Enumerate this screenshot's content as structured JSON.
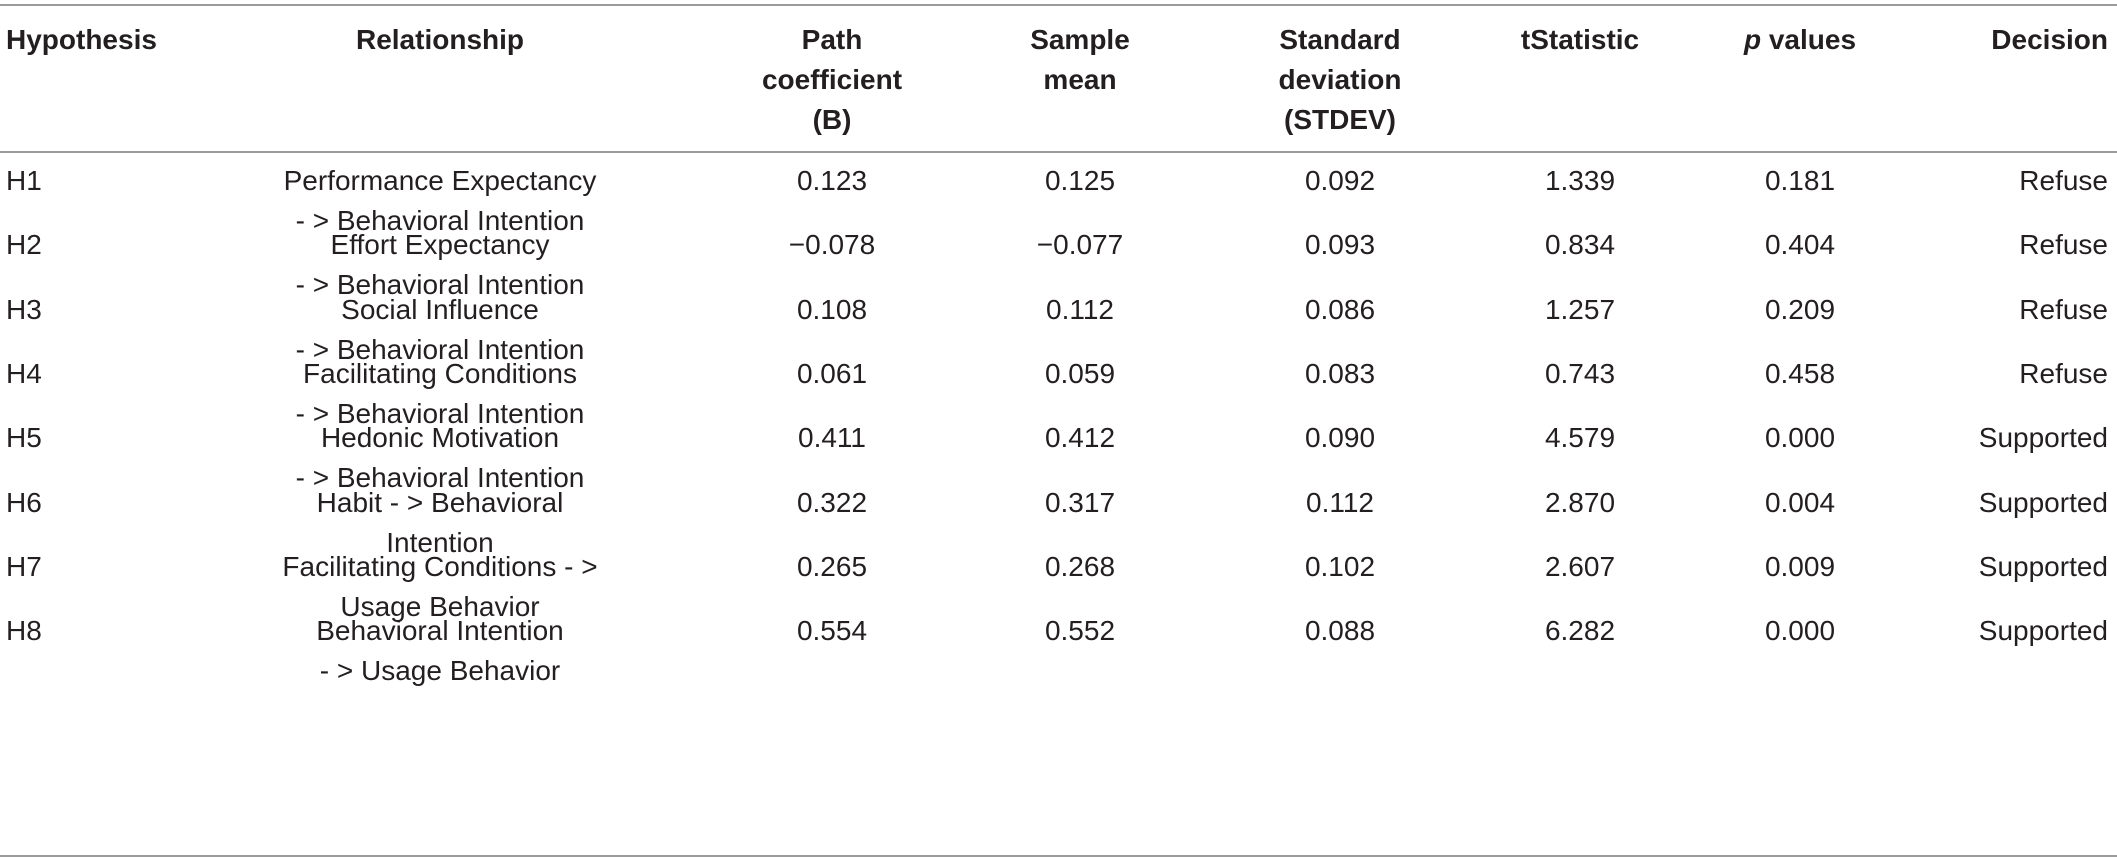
{
  "table": {
    "headers": {
      "hypothesis": [
        "Hypothesis"
      ],
      "relationship": [
        "Relationship"
      ],
      "path_coefficient": [
        "Path",
        "coefficient",
        "(B)"
      ],
      "sample_mean": [
        "Sample",
        "mean"
      ],
      "standard_deviation": [
        "Standard",
        "deviation",
        "(STDEV)"
      ],
      "t_statistic": [
        "tStatistic"
      ],
      "p_values_italic": "p",
      "p_values_rest": " values",
      "decision": [
        "Decision"
      ]
    },
    "rows": [
      {
        "hypothesis": "H1",
        "relationship": [
          "Performance Expectancy",
          "- > Behavioral Intention"
        ],
        "path_coefficient": "0.123",
        "sample_mean": "0.125",
        "stdev": "0.092",
        "t_statistic": "1.339",
        "p_value": "0.181",
        "decision": "Refuse"
      },
      {
        "hypothesis": "H2",
        "relationship": [
          "Effort Expectancy",
          "- > Behavioral Intention"
        ],
        "path_coefficient": "−0.078",
        "sample_mean": "−0.077",
        "stdev": "0.093",
        "t_statistic": "0.834",
        "p_value": "0.404",
        "decision": "Refuse"
      },
      {
        "hypothesis": "H3",
        "relationship": [
          "Social Influence",
          "- > Behavioral Intention"
        ],
        "path_coefficient": "0.108",
        "sample_mean": "0.112",
        "stdev": "0.086",
        "t_statistic": "1.257",
        "p_value": "0.209",
        "decision": "Refuse"
      },
      {
        "hypothesis": "H4",
        "relationship": [
          "Facilitating Conditions",
          "- > Behavioral Intention"
        ],
        "path_coefficient": "0.061",
        "sample_mean": "0.059",
        "stdev": "0.083",
        "t_statistic": "0.743",
        "p_value": "0.458",
        "decision": "Refuse"
      },
      {
        "hypothesis": "H5",
        "relationship": [
          "Hedonic Motivation",
          "- > Behavioral Intention"
        ],
        "path_coefficient": "0.411",
        "sample_mean": "0.412",
        "stdev": "0.090",
        "t_statistic": "4.579",
        "p_value": "0.000",
        "decision": "Supported"
      },
      {
        "hypothesis": "H6",
        "relationship": [
          "Habit - > Behavioral",
          "Intention"
        ],
        "path_coefficient": "0.322",
        "sample_mean": "0.317",
        "stdev": "0.112",
        "t_statistic": "2.870",
        "p_value": "0.004",
        "decision": "Supported"
      },
      {
        "hypothesis": "H7",
        "relationship": [
          "Facilitating Conditions - >",
          "Usage Behavior"
        ],
        "path_coefficient": "0.265",
        "sample_mean": "0.268",
        "stdev": "0.102",
        "t_statistic": "2.607",
        "p_value": "0.009",
        "decision": "Supported"
      },
      {
        "hypothesis": "H8",
        "relationship": [
          "Behavioral Intention",
          "- > Usage Behavior"
        ],
        "path_coefficient": "0.554",
        "sample_mean": "0.552",
        "stdev": "0.088",
        "t_statistic": "6.282",
        "p_value": "0.000",
        "decision": "Supported"
      }
    ]
  }
}
